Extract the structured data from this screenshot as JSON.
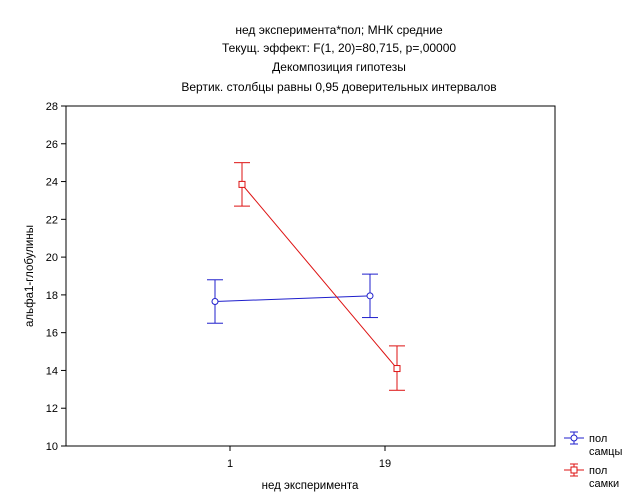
{
  "chart_data": {
    "type": "line",
    "title_lines": [
      "нед эксперимента*пол; МНК средние",
      "Текущ.  эффект: F(1, 20)=80,715, p=,00000",
      "Декомпозиция гипотезы",
      "Вертик. столбцы равны 0,95 доверительных интервалов"
    ],
    "xlabel": "нед эксперимента",
    "ylabel": "альфа1-глобулины",
    "categories": [
      "1",
      "19"
    ],
    "ylim": [
      10,
      28
    ],
    "yticks": [
      10,
      12,
      14,
      16,
      18,
      20,
      22,
      24,
      26,
      28
    ],
    "series": [
      {
        "name_lines": [
          "пол",
          "самцы"
        ],
        "color": "#1f1fcc",
        "marker": "circle",
        "values": [
          17.65,
          17.95
        ],
        "ci_low": [
          16.5,
          16.8
        ],
        "ci_high": [
          18.8,
          19.1
        ]
      },
      {
        "name_lines": [
          "пол",
          "самки"
        ],
        "color": "#dd1111",
        "marker": "square",
        "values": [
          23.85,
          14.1
        ],
        "ci_low": [
          22.7,
          12.95
        ],
        "ci_high": [
          25.0,
          15.3
        ]
      }
    ],
    "legend_position": "bottom-right",
    "grid": false
  }
}
